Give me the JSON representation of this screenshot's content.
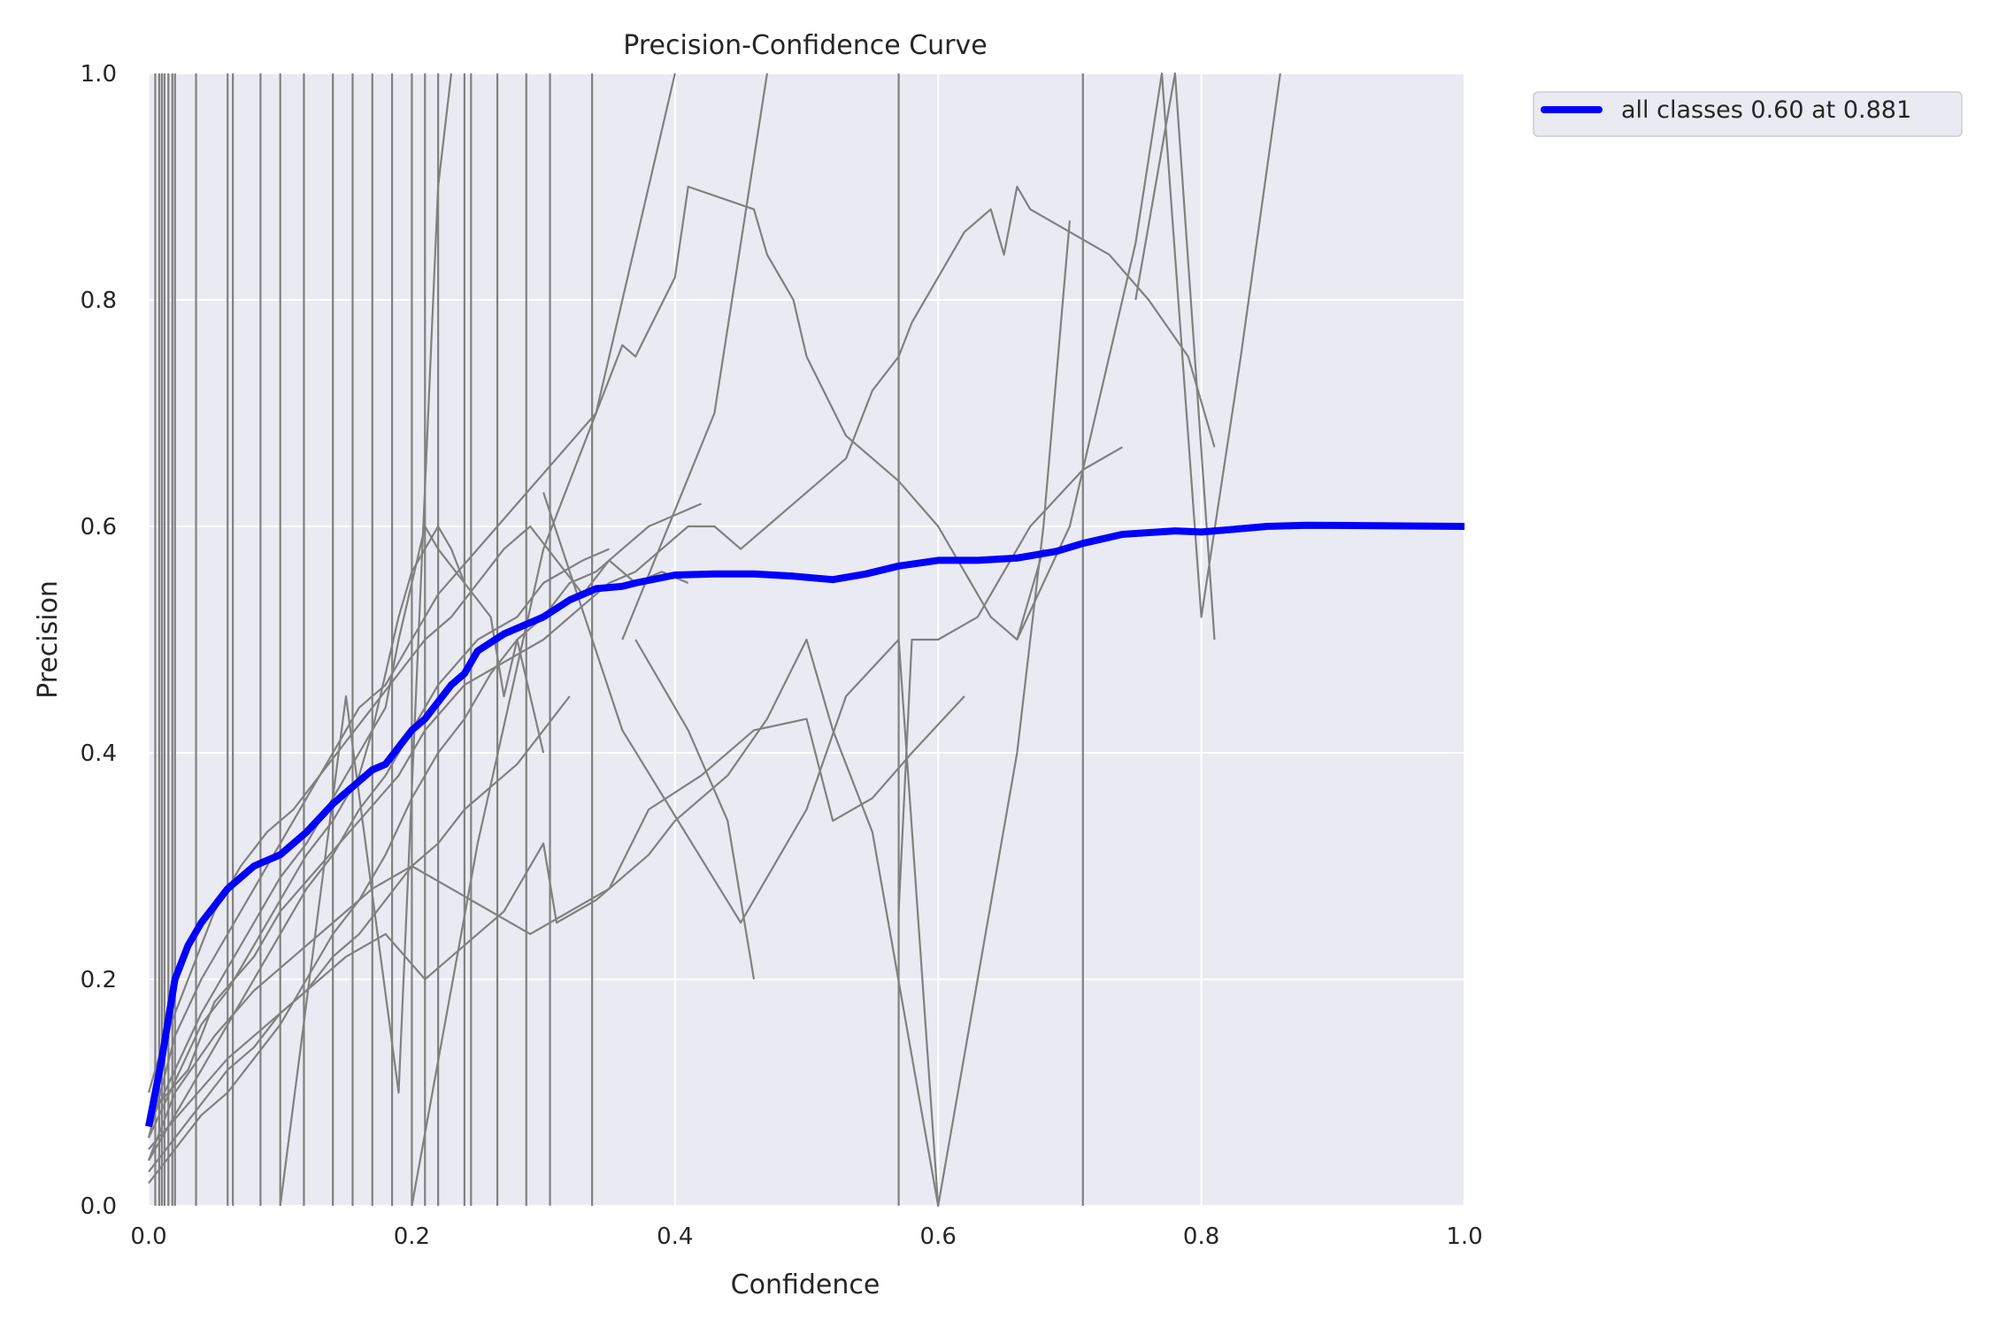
{
  "chart_data": {
    "type": "line",
    "title": "Precision-Confidence Curve",
    "xlabel": "Confidence",
    "ylabel": "Precision",
    "xlim": [
      0,
      1
    ],
    "ylim": [
      0,
      1
    ],
    "grid": true,
    "legend_position": "outside-top-right",
    "x_ticks": [
      "0.0",
      "0.2",
      "0.4",
      "0.6",
      "0.8",
      "1.0"
    ],
    "y_ticks": [
      "0.0",
      "0.2",
      "0.4",
      "0.6",
      "0.8",
      "1.0"
    ],
    "colors": {
      "background": "#EAEAF2",
      "grid": "#FFFFFF",
      "class_curves": "#808080",
      "all_classes": "#0000FF"
    },
    "series": [
      {
        "name": "all classes 0.60 at 0.881",
        "x": [
          0.0,
          0.01,
          0.02,
          0.03,
          0.04,
          0.05,
          0.06,
          0.07,
          0.08,
          0.09,
          0.1,
          0.12,
          0.14,
          0.16,
          0.17,
          0.18,
          0.19,
          0.2,
          0.21,
          0.22,
          0.23,
          0.24,
          0.25,
          0.27,
          0.28,
          0.29,
          0.3,
          0.32,
          0.34,
          0.36,
          0.37,
          0.4,
          0.43,
          0.46,
          0.49,
          0.52,
          0.545,
          0.57,
          0.6,
          0.63,
          0.66,
          0.69,
          0.71,
          0.74,
          0.78,
          0.8,
          0.83,
          0.85,
          0.88,
          1.0
        ],
        "y": [
          0.07,
          0.13,
          0.2,
          0.23,
          0.25,
          0.265,
          0.28,
          0.29,
          0.3,
          0.305,
          0.31,
          0.33,
          0.355,
          0.375,
          0.385,
          0.39,
          0.405,
          0.42,
          0.43,
          0.445,
          0.46,
          0.47,
          0.49,
          0.505,
          0.51,
          0.515,
          0.52,
          0.535,
          0.545,
          0.547,
          0.55,
          0.557,
          0.558,
          0.558,
          0.556,
          0.553,
          0.558,
          0.565,
          0.57,
          0.57,
          0.572,
          0.578,
          0.585,
          0.593,
          0.596,
          0.595,
          0.598,
          0.6,
          0.601,
          0.6
        ]
      }
    ],
    "class_curves": [
      {
        "x": [
          0.0,
          0.02,
          0.04,
          0.06,
          0.08,
          0.1,
          0.12,
          0.14,
          0.16,
          0.18,
          0.2,
          0.22,
          0.25,
          0.28,
          0.31,
          0.34,
          0.36,
          0.37,
          0.4,
          0.41,
          0.46,
          0.47,
          0.49,
          0.5,
          0.53,
          0.55,
          0.57,
          0.6,
          0.62,
          0.64,
          0.66,
          0.68
        ],
        "y": [
          0.06,
          0.15,
          0.2,
          0.24,
          0.28,
          0.32,
          0.36,
          0.4,
          0.44,
          0.46,
          0.5,
          0.54,
          0.58,
          0.62,
          0.66,
          0.7,
          0.76,
          0.75,
          0.82,
          0.9,
          0.88,
          0.84,
          0.8,
          0.75,
          0.68,
          0.66,
          0.64,
          0.6,
          0.56,
          0.52,
          0.5,
          0.58
        ]
      },
      {
        "x": [
          0.0,
          0.03,
          0.05,
          0.08,
          0.1,
          0.13,
          0.16,
          0.19,
          0.21,
          0.24,
          0.27,
          0.3,
          0.33,
          0.35,
          0.37,
          0.39,
          0.41,
          0.43,
          0.45,
          0.47,
          0.49,
          0.51,
          0.53,
          0.55,
          0.57,
          0.58,
          0.6,
          0.62,
          0.64,
          0.65,
          0.66,
          0.67,
          0.7,
          0.73,
          0.76,
          0.79,
          0.81
        ],
        "y": [
          0.08,
          0.12,
          0.18,
          0.22,
          0.26,
          0.3,
          0.34,
          0.38,
          0.42,
          0.46,
          0.48,
          0.5,
          0.53,
          0.55,
          0.56,
          0.58,
          0.6,
          0.6,
          0.58,
          0.6,
          0.62,
          0.64,
          0.66,
          0.72,
          0.75,
          0.78,
          0.82,
          0.86,
          0.88,
          0.84,
          0.9,
          0.88,
          0.86,
          0.84,
          0.8,
          0.75,
          0.67
        ]
      },
      {
        "x": [
          0.0,
          0.02,
          0.05,
          0.08,
          0.11,
          0.14,
          0.17,
          0.2,
          0.23,
          0.26,
          0.29,
          0.32,
          0.35,
          0.38,
          0.42,
          0.46,
          0.5,
          0.52,
          0.55,
          0.58,
          0.62
        ],
        "y": [
          0.04,
          0.1,
          0.15,
          0.19,
          0.22,
          0.25,
          0.28,
          0.3,
          0.28,
          0.26,
          0.24,
          0.26,
          0.28,
          0.35,
          0.38,
          0.42,
          0.43,
          0.34,
          0.36,
          0.4,
          0.45
        ]
      },
      {
        "x": [
          0.0,
          0.03,
          0.06,
          0.09,
          0.12,
          0.15,
          0.18,
          0.21,
          0.24,
          0.27,
          0.3,
          0.31,
          0.34,
          0.36,
          0.38,
          0.4,
          0.44,
          0.47,
          0.5,
          0.52,
          0.55,
          0.6
        ],
        "y": [
          0.05,
          0.09,
          0.13,
          0.16,
          0.19,
          0.22,
          0.24,
          0.2,
          0.23,
          0.26,
          0.32,
          0.25,
          0.27,
          0.29,
          0.31,
          0.34,
          0.38,
          0.43,
          0.5,
          0.42,
          0.33,
          0.0
        ]
      },
      {
        "x": [
          0.0,
          0.02,
          0.04,
          0.06,
          0.08,
          0.1,
          0.12,
          0.14,
          0.16,
          0.18,
          0.2,
          0.22,
          0.24,
          0.26,
          0.28,
          0.3,
          0.32
        ],
        "y": [
          0.03,
          0.06,
          0.09,
          0.12,
          0.14,
          0.17,
          0.19,
          0.22,
          0.24,
          0.27,
          0.3,
          0.32,
          0.35,
          0.37,
          0.39,
          0.42,
          0.45
        ]
      },
      {
        "x": [
          0.0,
          0.01,
          0.03,
          0.05,
          0.07,
          0.09,
          0.11,
          0.13,
          0.15,
          0.17,
          0.19,
          0.21,
          0.23,
          0.25,
          0.27,
          0.29,
          0.31,
          0.33,
          0.35,
          0.37,
          0.39,
          0.41
        ],
        "y": [
          0.1,
          0.14,
          0.2,
          0.26,
          0.3,
          0.33,
          0.35,
          0.38,
          0.41,
          0.44,
          0.47,
          0.5,
          0.52,
          0.55,
          0.58,
          0.6,
          0.57,
          0.54,
          0.57,
          0.55,
          0.56,
          0.55
        ]
      },
      {
        "x": [
          0.0,
          0.02,
          0.04,
          0.06,
          0.08,
          0.1,
          0.12,
          0.14,
          0.16,
          0.18,
          0.2,
          0.22,
          0.24,
          0.26,
          0.28,
          0.3,
          0.32,
          0.34,
          0.36,
          0.38,
          0.4,
          0.42
        ],
        "y": [
          0.02,
          0.05,
          0.08,
          0.1,
          0.13,
          0.16,
          0.2,
          0.24,
          0.27,
          0.31,
          0.36,
          0.4,
          0.43,
          0.47,
          0.5,
          0.52,
          0.55,
          0.56,
          0.58,
          0.6,
          0.61,
          0.62
        ]
      },
      {
        "x": [
          0.0,
          0.02,
          0.04,
          0.06,
          0.08,
          0.1,
          0.12,
          0.14,
          0.16,
          0.18,
          0.19,
          0.2,
          0.21,
          0.22,
          0.24,
          0.26,
          0.27,
          0.28,
          0.3
        ],
        "y": [
          0.07,
          0.12,
          0.17,
          0.21,
          0.25,
          0.29,
          0.32,
          0.36,
          0.4,
          0.44,
          0.5,
          0.55,
          0.6,
          0.58,
          0.55,
          0.52,
          0.45,
          0.5,
          0.4
        ]
      },
      {
        "x": [
          0.0,
          0.02,
          0.04,
          0.06,
          0.08,
          0.1,
          0.12,
          0.14,
          0.16,
          0.17,
          0.18,
          0.19,
          0.2,
          0.21,
          0.22,
          0.23,
          0.24
        ],
        "y": [
          0.06,
          0.11,
          0.16,
          0.19,
          0.23,
          0.27,
          0.31,
          0.34,
          0.38,
          0.42,
          0.47,
          0.52,
          0.56,
          0.58,
          0.6,
          0.58,
          0.55
        ]
      },
      {
        "x": [
          0.0,
          0.02,
          0.04,
          0.06,
          0.08,
          0.1,
          0.12,
          0.14,
          0.16,
          0.18,
          0.2,
          0.22,
          0.25,
          0.28,
          0.3,
          0.33,
          0.35
        ],
        "y": [
          0.04,
          0.08,
          0.12,
          0.16,
          0.2,
          0.24,
          0.28,
          0.31,
          0.35,
          0.38,
          0.42,
          0.46,
          0.5,
          0.52,
          0.55,
          0.57,
          0.58
        ]
      },
      {
        "x": [
          0.1,
          0.15,
          0.19,
          0.22,
          0.23
        ],
        "y": [
          0.0,
          0.45,
          0.1,
          0.9,
          1.0
        ]
      },
      {
        "x": [
          0.2,
          0.25,
          0.3,
          0.34,
          0.4
        ],
        "y": [
          0.0,
          0.32,
          0.58,
          0.7,
          1.0
        ]
      },
      {
        "x": [
          0.36,
          0.43,
          0.47
        ],
        "y": [
          0.5,
          0.7,
          1.0
        ]
      },
      {
        "x": [
          0.37,
          0.41,
          0.44,
          0.46
        ],
        "y": [
          0.5,
          0.42,
          0.34,
          0.2
        ]
      },
      {
        "x": [
          0.3,
          0.36,
          0.45,
          0.5,
          0.53,
          0.57,
          0.6,
          0.63,
          0.66,
          0.68,
          0.7
        ],
        "y": [
          0.63,
          0.42,
          0.25,
          0.35,
          0.45,
          0.5,
          0.0,
          0.2,
          0.4,
          0.6,
          0.87
        ]
      },
      {
        "x": [
          0.57,
          0.58,
          0.6,
          0.63,
          0.67,
          0.71,
          0.74
        ],
        "y": [
          0.26,
          0.5,
          0.5,
          0.52,
          0.6,
          0.65,
          0.67
        ]
      },
      {
        "x": [
          0.66,
          0.7,
          0.72,
          0.75,
          0.77,
          0.8,
          0.83,
          0.86
        ],
        "y": [
          0.5,
          0.6,
          0.7,
          0.85,
          1.0,
          0.52,
          0.75,
          1.0
        ]
      },
      {
        "x": [
          0.75,
          0.78,
          0.81
        ],
        "y": [
          0.8,
          1.0,
          0.5
        ]
      }
    ],
    "vertical_lines_x": [
      0.005,
      0.008,
      0.01,
      0.012,
      0.015,
      0.018,
      0.02,
      0.036,
      0.06,
      0.064,
      0.085,
      0.1,
      0.118,
      0.14,
      0.155,
      0.17,
      0.185,
      0.2,
      0.21,
      0.22,
      0.24,
      0.245,
      0.265,
      0.287,
      0.305,
      0.337,
      0.57,
      0.71
    ]
  }
}
